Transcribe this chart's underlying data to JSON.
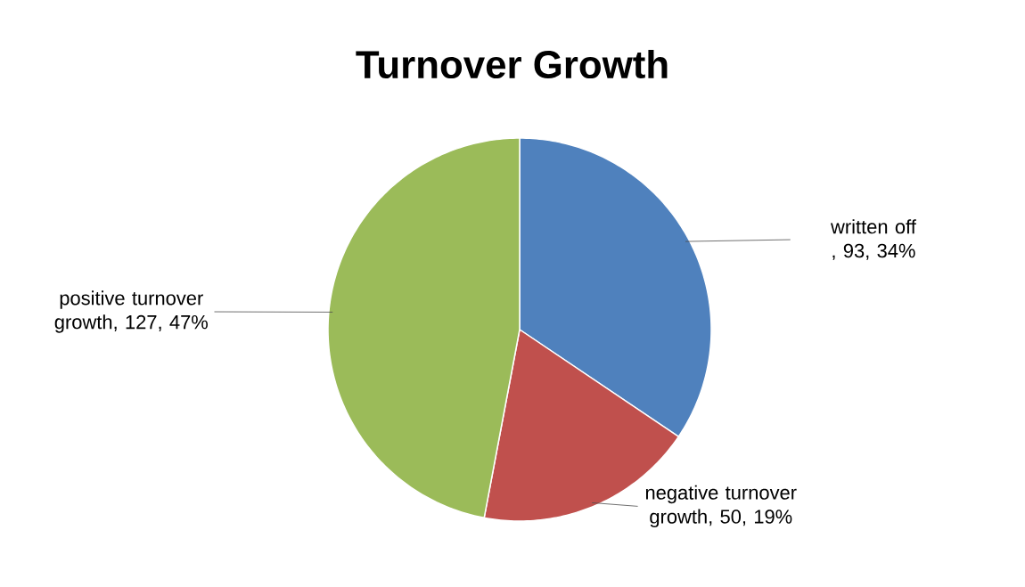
{
  "chart_data": {
    "type": "pie",
    "title": "Turnover Growth",
    "categories": [
      "written off",
      "negative turnover growth",
      "positive turnover growth"
    ],
    "values": [
      93,
      50,
      127
    ],
    "colors": [
      "#4f81bd",
      "#c0504d",
      "#9bbb59"
    ],
    "value_labels": [
      " , 93, 34%",
      ", 50, 19%",
      ", 127, 47%"
    ]
  }
}
